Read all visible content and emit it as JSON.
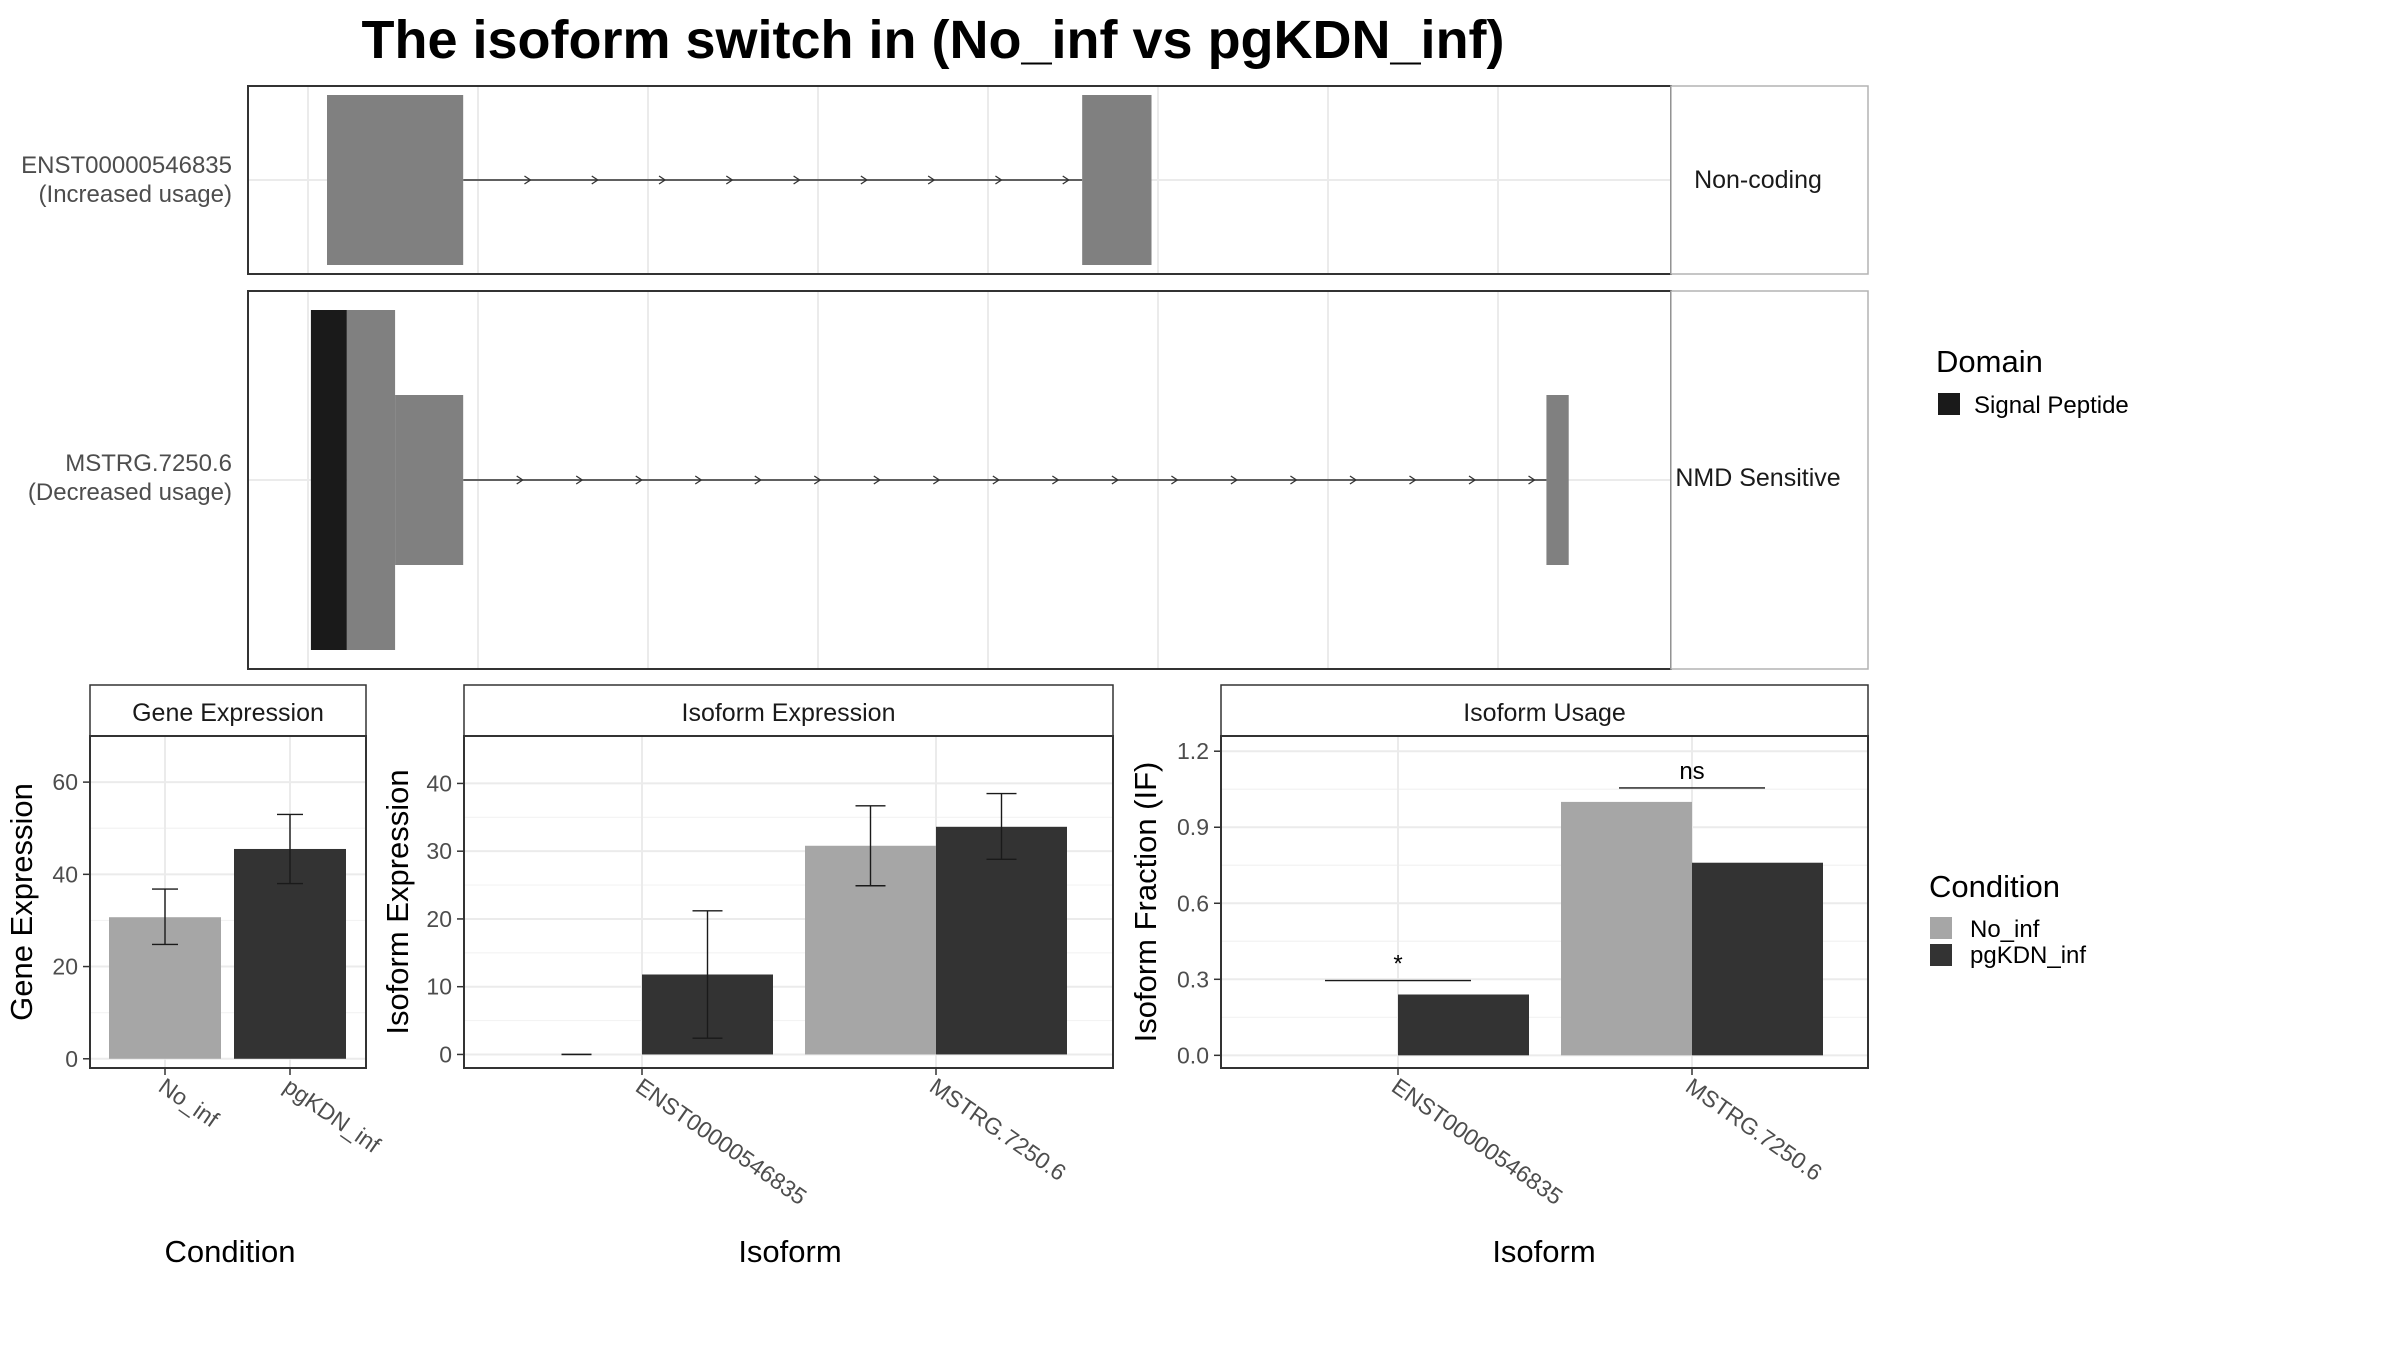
{
  "title": "The isoform switch in  (No_inf vs pgKDN_inf)",
  "colors": {
    "exon": "#808080",
    "domain": "#1a1a1a",
    "no_inf": "#a6a6a6",
    "pgkdn_inf": "#333333",
    "panel_border": "#333333",
    "grid": "#ebebeb",
    "strip_bg": "#ffffff"
  },
  "transcript_plot": {
    "rows": [
      {
        "name": "ENST00000546835",
        "usage": "(Increased usage)",
        "category": "Non-coding",
        "exons": [
          {
            "start": 0.0,
            "end": 0.11,
            "height": "full"
          },
          {
            "start": 0.61,
            "end": 0.666,
            "height": "full"
          }
        ],
        "intron_arrows": 9
      },
      {
        "name": "MSTRG.7250.6",
        "usage": "(Decreased usage)",
        "category": "NMD Sensitive",
        "domain_segments": [
          {
            "start": -0.013,
            "end": 0.016,
            "label": "Signal Peptide"
          }
        ],
        "exons": [
          {
            "start": 0.016,
            "end": 0.055,
            "height": "full"
          },
          {
            "start": 0.055,
            "end": 0.11,
            "height": "half"
          },
          {
            "start": 0.985,
            "end": 1.003,
            "height": "half"
          }
        ],
        "intron_arrows": 18
      }
    ],
    "legend_title": "Domain",
    "legend_items": [
      {
        "label": "Signal Peptide",
        "color": "#1a1a1a"
      }
    ]
  },
  "chart_data": [
    {
      "type": "bar",
      "title": "Gene Expression",
      "categories": [
        "No_inf",
        "pgKDN_inf"
      ],
      "values": [
        30.7,
        45.5
      ],
      "error_low": [
        24.8,
        38.0
      ],
      "error_high": [
        36.8,
        53.0
      ],
      "colors": [
        "#a6a6a6",
        "#333333"
      ],
      "ylim": [
        -2,
        70
      ],
      "yticks": [
        0,
        20,
        40,
        60
      ],
      "xlabel": "Condition",
      "ylabel": "Gene Expression",
      "grid": true
    },
    {
      "type": "bar",
      "title": "Isoform Expression",
      "categories": [
        "ENST00000546835",
        "MSTRG.7250.6"
      ],
      "series": [
        {
          "name": "No_inf",
          "values": [
            0.0,
            30.8
          ],
          "error_low": [
            0.0,
            24.9
          ],
          "error_high": [
            0.0,
            36.7
          ]
        },
        {
          "name": "pgKDN_inf",
          "values": [
            11.8,
            33.6
          ],
          "error_low": [
            2.4,
            28.8
          ],
          "error_high": [
            21.2,
            38.5
          ]
        }
      ],
      "ylim": [
        -2,
        47
      ],
      "yticks": [
        0,
        10,
        20,
        30,
        40
      ],
      "xlabel": "Isoform",
      "ylabel": "Isoform Expression",
      "grid": true
    },
    {
      "type": "bar",
      "title": "Isoform Usage",
      "categories": [
        "ENST00000546835",
        "MSTRG.7250.6"
      ],
      "series": [
        {
          "name": "No_inf",
          "values": [
            0.0,
            1.0
          ]
        },
        {
          "name": "pgKDN_inf",
          "values": [
            0.24,
            0.76
          ]
        }
      ],
      "significance": [
        {
          "category": "ENST00000546835",
          "label": "*",
          "y": 0.295
        },
        {
          "category": "MSTRG.7250.6",
          "label": "ns",
          "y": 1.055
        }
      ],
      "ylim": [
        -0.05,
        1.26
      ],
      "yticks": [
        0.0,
        0.3,
        0.6,
        0.9,
        1.2
      ],
      "ytick_labels": [
        "0.0",
        "0.3",
        "0.6",
        "0.9",
        "1.2"
      ],
      "xlabel": "Isoform",
      "ylabel": "Isoform Fraction (IF)",
      "grid": true
    }
  ],
  "condition_legend": {
    "title": "Condition",
    "items": [
      {
        "label": "No_inf",
        "color": "#a6a6a6"
      },
      {
        "label": "pgKDN_inf",
        "color": "#333333"
      }
    ]
  }
}
